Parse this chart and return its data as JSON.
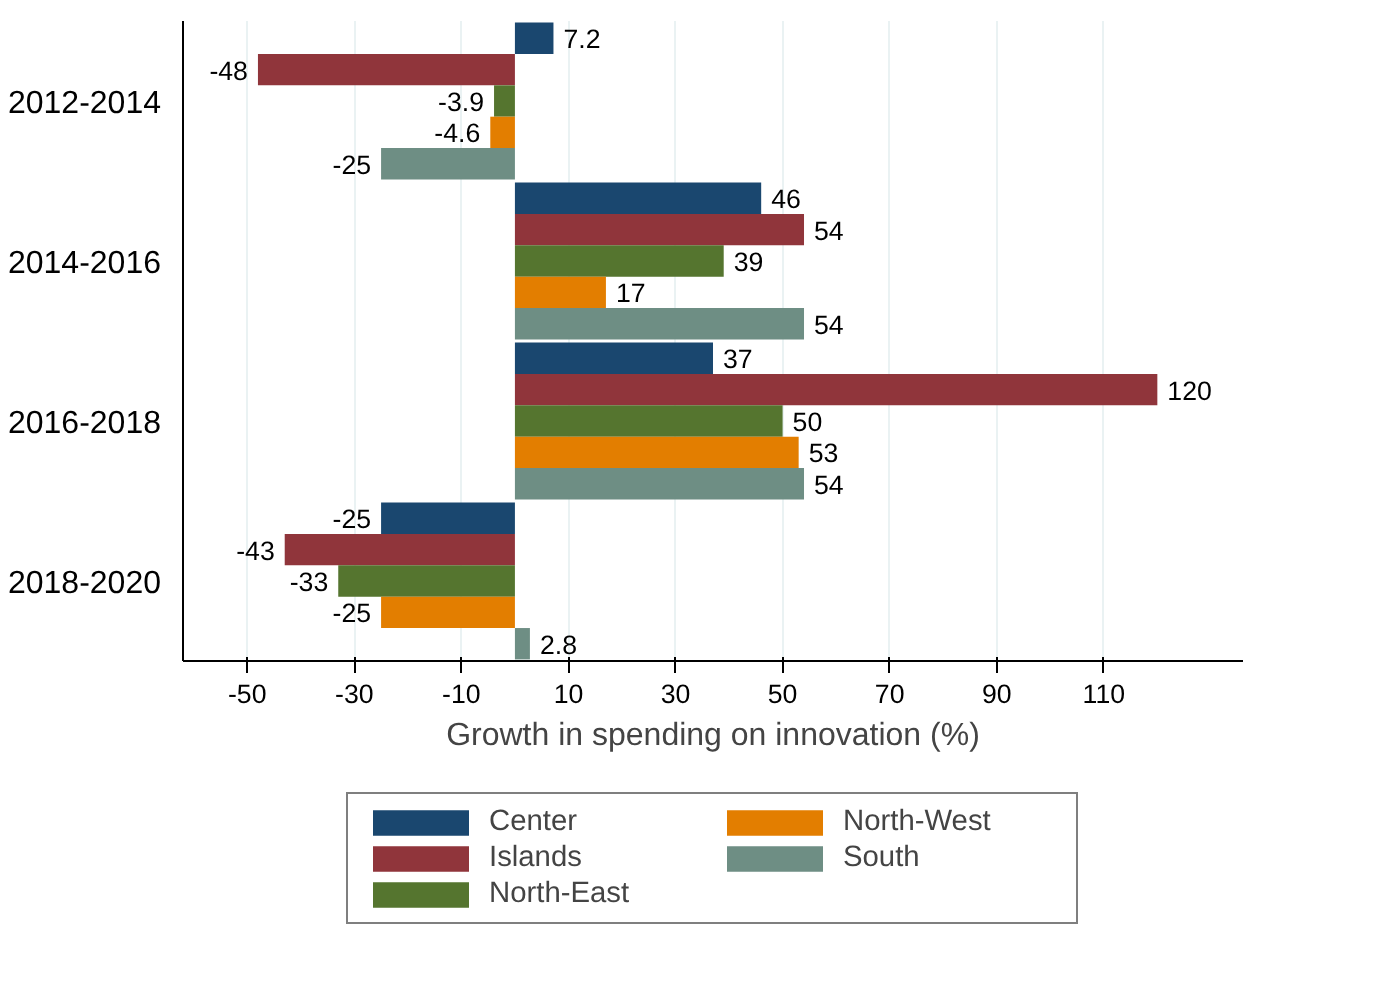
{
  "chart_data": {
    "type": "bar",
    "orientation": "horizontal",
    "categories": [
      "2012-2014",
      "2014-2016",
      "2016-2018",
      "2018-2020"
    ],
    "series": [
      {
        "name": "Center",
        "color": "#1a476f",
        "values": [
          7.2,
          46,
          37,
          -25
        ]
      },
      {
        "name": "Islands",
        "color": "#90353b",
        "values": [
          -48,
          54,
          120,
          -43
        ]
      },
      {
        "name": "North-East",
        "color": "#55752f",
        "values": [
          -3.9,
          39,
          50,
          -33
        ]
      },
      {
        "name": "North-West",
        "color": "#e37e00",
        "values": [
          -4.6,
          17,
          53,
          -25
        ]
      },
      {
        "name": "South",
        "color": "#6e8e84",
        "values": [
          -25,
          54,
          54,
          2.8
        ]
      }
    ],
    "xlabel": "Growth in spending on innovation (%)",
    "xlim": [
      -62,
      136
    ],
    "xticks": [
      -50,
      -30,
      -10,
      10,
      30,
      50,
      70,
      90,
      110
    ],
    "grid": "x",
    "legend": "bottom",
    "data_labels": true
  }
}
